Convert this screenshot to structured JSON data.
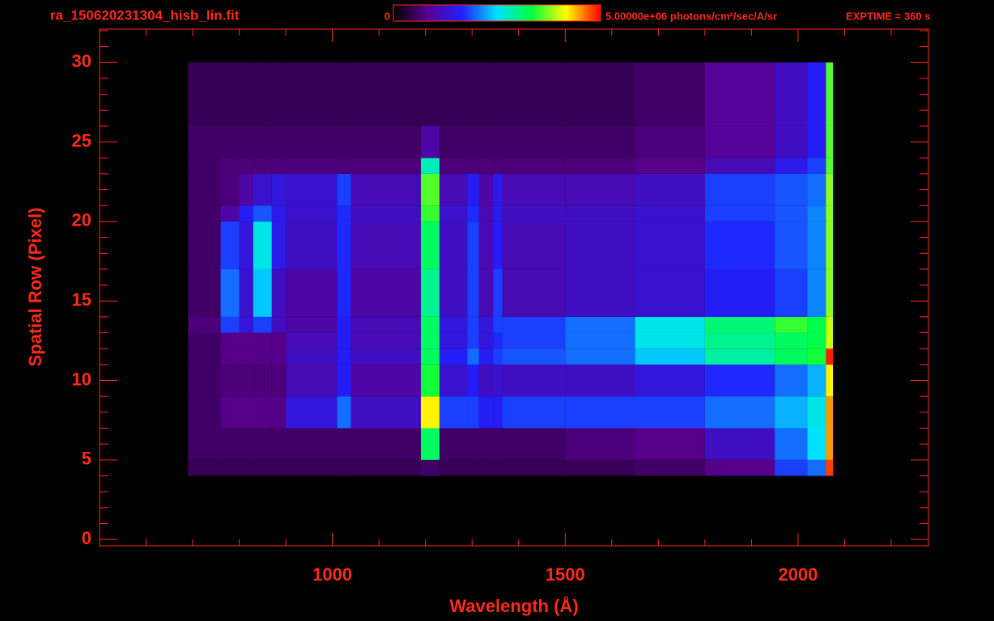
{
  "chart_data": {
    "type": "heatmap",
    "title": "ra_150620231304_hisb_lin.fit",
    "annotation": "EXPTIME = 360 s",
    "xlabel": "Wavelength (Å)",
    "ylabel": "Spatial Row (Pixel)",
    "xlim": [
      500,
      2280
    ],
    "ylim": [
      -0.4,
      32.1
    ],
    "xticks": [
      1000,
      1500,
      2000
    ],
    "yticks": [
      0,
      5,
      10,
      15,
      20,
      25,
      30
    ],
    "xminorticks": [
      600,
      700,
      800,
      900,
      1100,
      1200,
      1300,
      1400,
      1600,
      1700,
      1800,
      1900,
      2100,
      2200
    ],
    "yminorticks": [
      1,
      2,
      3,
      4,
      6,
      7,
      8,
      9,
      11,
      12,
      13,
      14,
      16,
      17,
      18,
      19,
      21,
      22,
      23,
      24,
      26,
      27,
      28,
      29,
      31,
      32
    ],
    "zlim": [
      0,
      5000000
    ],
    "zticks": [
      0,
      {
        "value": 5000000,
        "label": "5.00000e+06 photons/cm²/sec/A/sr"
      }
    ],
    "colormap": [
      "#000000",
      "#5a0090",
      "#2020ff",
      "#00e0ff",
      "#00ff40",
      "#ffff00",
      "#ff0000"
    ],
    "axis_color": "#ff2a1a",
    "x_edges": [
      690,
      760,
      800,
      830,
      870,
      900,
      1010,
      1040,
      1190,
      1230,
      1290,
      1315,
      1345,
      1365,
      1500,
      1650,
      1800,
      1950,
      2020,
      2060,
      2075
    ],
    "y_edges": [
      4,
      5,
      7,
      9,
      11,
      12,
      13,
      14,
      17,
      20,
      21,
      23,
      24,
      26,
      30
    ],
    "z": [
      [
        500000.0,
        500000.0,
        500000.0,
        500000.0,
        500000.0,
        500000.0,
        500000.0,
        500000.0,
        600000.0,
        500000.0,
        500000.0,
        500000.0,
        500000.0,
        500000.0,
        500000.0,
        600000.0,
        800000.0,
        1800000.0,
        2000000.0,
        4800000.0
      ],
      [
        600000.0,
        600000.0,
        600000.0,
        600000.0,
        600000.0,
        600000.0,
        600000.0,
        600000.0,
        3200000.0,
        600000.0,
        600000.0,
        600000.0,
        600000.0,
        600000.0,
        700000.0,
        800000.0,
        1200000.0,
        2000000.0,
        2500000.0,
        4500000.0
      ],
      [
        600000.0,
        800000.0,
        800000.0,
        800000.0,
        800000.0,
        1400000.0,
        2000000.0,
        1200000.0,
        4200000.0,
        1800000.0,
        1800000.0,
        1600000.0,
        1600000.0,
        1800000.0,
        1800000.0,
        1800000.0,
        2000000.0,
        2300000.0,
        2600000.0,
        4500000.0
      ],
      [
        600000.0,
        700000.0,
        700000.0,
        700000.0,
        700000.0,
        1100000.0,
        1600000.0,
        1000000.0,
        3400000.0,
        1300000.0,
        1600000.0,
        1200000.0,
        1300000.0,
        1200000.0,
        1200000.0,
        1400000.0,
        1700000.0,
        2000000.0,
        2300000.0,
        4200000.0
      ],
      [
        600000.0,
        800000.0,
        800000.0,
        800000.0,
        800000.0,
        1200000.0,
        1600000.0,
        1200000.0,
        3200000.0,
        1600000.0,
        2000000.0,
        1600000.0,
        1800000.0,
        1900000.0,
        2000000.0,
        2400000.0,
        2900000.0,
        3200000.0,
        3400000.0,
        4900000.0
      ],
      [
        600000.0,
        800000.0,
        800000.0,
        800000.0,
        800000.0,
        1100000.0,
        1600000.0,
        1100000.0,
        3200000.0,
        1400000.0,
        1800000.0,
        1400000.0,
        1700000.0,
        1800000.0,
        2000000.0,
        2600000.0,
        3000000.0,
        3200000.0,
        3300000.0,
        4000000.0
      ],
      [
        700000.0,
        1800000.0,
        1400000.0,
        1800000.0,
        1200000.0,
        1000000.0,
        1600000.0,
        1100000.0,
        3200000.0,
        1400000.0,
        1800000.0,
        1400000.0,
        1800000.0,
        1800000.0,
        2000000.0,
        2600000.0,
        3100000.0,
        3500000.0,
        3300000.0,
        4000000.0
      ],
      [
        600000.0,
        2000000.0,
        1300000.0,
        2400000.0,
        1200000.0,
        1000000.0,
        1700000.0,
        1000000.0,
        3000000.0,
        1200000.0,
        1800000.0,
        1100000.0,
        1800000.0,
        1100000.0,
        1200000.0,
        1300000.0,
        1600000.0,
        1800000.0,
        2100000.0,
        3800000.0
      ],
      [
        600000.0,
        1800000.0,
        1400000.0,
        2600000.0,
        1500000.0,
        1200000.0,
        1700000.0,
        1100000.0,
        3200000.0,
        1200000.0,
        1800000.0,
        1100000.0,
        1600000.0,
        1100000.0,
        1200000.0,
        1300000.0,
        1700000.0,
        1900000.0,
        2100000.0,
        3800000.0
      ],
      [
        600000.0,
        1000000.0,
        1600000.0,
        1900000.0,
        1500000.0,
        1300000.0,
        1700000.0,
        1200000.0,
        3500000.0,
        1300000.0,
        1700000.0,
        1100000.0,
        1500000.0,
        1200000.0,
        1200000.0,
        1300000.0,
        1800000.0,
        1900000.0,
        2100000.0,
        3800000.0
      ],
      [
        600000.0,
        700000.0,
        1000000.0,
        1300000.0,
        1400000.0,
        1300000.0,
        1800000.0,
        1100000.0,
        3600000.0,
        1100000.0,
        1600000.0,
        1000000.0,
        1500000.0,
        1100000.0,
        1100000.0,
        1200000.0,
        1800000.0,
        1900000.0,
        2000000.0,
        3800000.0
      ],
      [
        600000.0,
        700000.0,
        700000.0,
        700000.0,
        700000.0,
        700000.0,
        700000.0,
        700000.0,
        2800000.0,
        700000.0,
        700000.0,
        700000.0,
        700000.0,
        700000.0,
        700000.0,
        800000.0,
        1100000.0,
        1500000.0,
        1800000.0,
        3600000.0
      ],
      [
        600000.0,
        600000.0,
        600000.0,
        600000.0,
        600000.0,
        600000.0,
        600000.0,
        600000.0,
        1000000.0,
        600000.0,
        600000.0,
        600000.0,
        600000.0,
        600000.0,
        600000.0,
        700000.0,
        900000.0,
        1200000.0,
        1600000.0,
        3600000.0
      ],
      [
        500000.0,
        500000.0,
        500000.0,
        500000.0,
        500000.0,
        500000.0,
        500000.0,
        500000.0,
        500000.0,
        500000.0,
        500000.0,
        500000.0,
        500000.0,
        500000.0,
        500000.0,
        600000.0,
        900000.0,
        1200000.0,
        1600000.0,
        3600000.0
      ]
    ]
  }
}
